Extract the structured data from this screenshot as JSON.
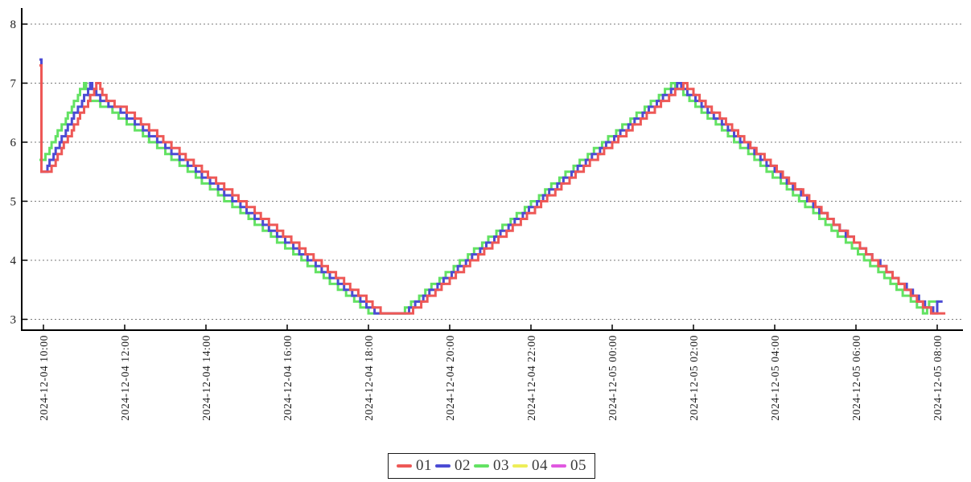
{
  "figure": {
    "background": "#ffffff",
    "axis_color": "#000000",
    "grid_color": "#7a7a7a",
    "tick_label_color": "#1c1c1c"
  },
  "legend": {
    "items": [
      {
        "label": "01",
        "color": "#ee5856"
      },
      {
        "label": "02",
        "color": "#4b4bd4"
      },
      {
        "label": "03",
        "color": "#63e263"
      },
      {
        "label": "04",
        "color": "#eeee58"
      },
      {
        "label": "05",
        "color": "#e058e0"
      }
    ]
  },
  "chart_data": {
    "type": "line",
    "step_interpolation": true,
    "title": "",
    "xlabel": "",
    "ylabel": "",
    "ylim": [
      3,
      8
    ],
    "grid": "horizontal-dashed",
    "legend_position": "bottom-center",
    "y_tick_values": [
      8,
      7,
      6,
      5,
      4,
      3
    ],
    "x_tick_labels": [
      "2024-12-04 10:00",
      "2024-12-04 12:00",
      "2024-12-04 14:00",
      "2024-12-04 16:00",
      "2024-12-04 18:00",
      "2024-12-04 20:00",
      "2024-12-04 22:00",
      "2024-12-05 00:00",
      "2024-12-05 02:00",
      "2024-12-05 04:00",
      "2024-12-05 06:00",
      "2024-12-05 08:00"
    ],
    "x_tick_interval_minutes": 120,
    "value_quantum": 0.1,
    "sample_step_minutes": 3,
    "series_notes": "points are [minutes since 2024-12-04 10:00, value]; series 04 and 05 have no visible data",
    "series": [
      {
        "name": "01",
        "color": "#ee5856",
        "points": [
          [
            -6,
            7.25
          ],
          [
            -3,
            5.5
          ],
          [
            8,
            5.5
          ],
          [
            80,
            7.0
          ],
          [
            84,
            6.9
          ],
          [
            88,
            6.78
          ],
          [
            102,
            6.65
          ],
          [
            116,
            6.6
          ],
          [
            498,
            3.14
          ],
          [
            542,
            3.12
          ],
          [
            946,
            6.98
          ],
          [
            1313,
            3.1
          ],
          [
            1332,
            3.1
          ]
        ]
      },
      {
        "name": "02",
        "color": "#4b4bd4",
        "points": [
          [
            -6,
            7.4
          ],
          [
            -3,
            5.55
          ],
          [
            4,
            5.55
          ],
          [
            70,
            7.0
          ],
          [
            74,
            6.88
          ],
          [
            78,
            6.78
          ],
          [
            92,
            6.66
          ],
          [
            106,
            6.6
          ],
          [
            490,
            3.13
          ],
          [
            534,
            3.11
          ],
          [
            938,
            6.98
          ],
          [
            1316,
            3.1
          ],
          [
            1321,
            3.3
          ],
          [
            1328,
            3.3
          ]
        ]
      },
      {
        "name": "03",
        "color": "#63e263",
        "points": [
          [
            -6,
            5.65
          ],
          [
            0,
            5.7
          ],
          [
            60,
            7.0
          ],
          [
            64,
            6.85
          ],
          [
            68,
            6.75
          ],
          [
            82,
            6.65
          ],
          [
            94,
            6.6
          ],
          [
            482,
            3.12
          ],
          [
            526,
            3.1
          ],
          [
            930,
            6.98
          ],
          [
            1302,
            3.1
          ],
          [
            1308,
            3.3
          ],
          [
            1323,
            3.3
          ]
        ]
      },
      {
        "name": "04",
        "color": "#eeee58",
        "points": []
      },
      {
        "name": "05",
        "color": "#e058e0",
        "points": []
      }
    ]
  }
}
